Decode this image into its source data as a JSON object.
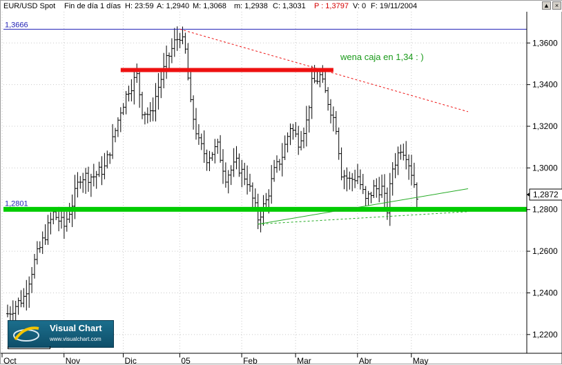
{
  "title_bar": {
    "symbol": "EUR/USD Spot",
    "frame": "Fin de día 1 días",
    "hour": "H: 23:59",
    "a": "A: 1,2940",
    "m": "M: 1,3068",
    "min": "m: 1,2938",
    "c": "C: 1,3031",
    "p": "P : 1,3797",
    "v": "V: 0",
    "f": "F: 19/11/2004"
  },
  "window_buttons": [
    "▲",
    "×"
  ],
  "logo": {
    "title": "Visual Chart",
    "url": "www.visualchart.com"
  },
  "chart_data": {
    "type": "candlestick",
    "title": "EUR/USD Spot",
    "ylim": [
      1.211,
      1.375
    ],
    "y_ticks": [
      "1,2200",
      "1,2400",
      "1,2600",
      "1,2800",
      "1,3000",
      "1,3200",
      "1,3400",
      "1,3600"
    ],
    "y_tick_values": [
      1.22,
      1.24,
      1.26,
      1.28,
      1.3,
      1.32,
      1.34,
      1.36
    ],
    "x_labels": [
      "Oct",
      "Nov",
      "Dic",
      "05",
      "Feb",
      "Mar",
      "Abr",
      "May"
    ],
    "x_label_bars": [
      0,
      23,
      45,
      66,
      89,
      109,
      132,
      152
    ],
    "n_bars": 172,
    "price_path": [
      [
        0,
        1.23
      ],
      [
        6,
        1.238
      ],
      [
        10,
        1.255
      ],
      [
        14,
        1.268
      ],
      [
        17,
        1.278
      ],
      [
        21,
        1.272
      ],
      [
        24,
        1.283
      ],
      [
        27,
        1.296
      ],
      [
        32,
        1.296
      ],
      [
        36,
        1.3
      ],
      [
        39,
        1.313
      ],
      [
        42,
        1.328
      ],
      [
        45,
        1.338
      ],
      [
        48,
        1.344
      ],
      [
        50,
        1.328
      ],
      [
        53,
        1.325
      ],
      [
        56,
        1.339
      ],
      [
        59,
        1.351
      ],
      [
        62,
        1.36
      ],
      [
        64,
        1.364
      ],
      [
        66,
        1.356
      ],
      [
        68,
        1.33
      ],
      [
        71,
        1.312
      ],
      [
        74,
        1.305
      ],
      [
        78,
        1.31
      ],
      [
        81,
        1.296
      ],
      [
        85,
        1.302
      ],
      [
        89,
        1.294
      ],
      [
        91,
        1.285
      ],
      [
        93,
        1.276
      ],
      [
        96,
        1.284
      ],
      [
        99,
        1.298
      ],
      [
        102,
        1.306
      ],
      [
        105,
        1.32
      ],
      [
        108,
        1.313
      ],
      [
        111,
        1.322
      ],
      [
        113,
        1.34
      ],
      [
        116,
        1.344
      ],
      [
        119,
        1.332
      ],
      [
        122,
        1.32
      ],
      [
        124,
        1.298
      ],
      [
        127,
        1.294
      ],
      [
        130,
        1.296
      ],
      [
        133,
        1.284
      ],
      [
        136,
        1.29
      ],
      [
        139,
        1.29
      ],
      [
        141,
        1.28
      ],
      [
        143,
        1.3
      ],
      [
        146,
        1.31
      ],
      [
        148,
        1.307
      ],
      [
        150,
        1.298
      ],
      [
        152,
        1.2872
      ]
    ],
    "last_price": "1,2872",
    "levels": [
      {
        "label": "1,3666",
        "value": 1.3666,
        "color": "#1f1fb4",
        "width": 1
      },
      {
        "label": "1,2801",
        "value": 1.2801,
        "color": "#00cc00",
        "width": 7
      }
    ],
    "resistance_box": {
      "value": 1.347,
      "from_bar": 42,
      "to_bar": 121,
      "color": "#ee1111"
    },
    "trendlines": [
      {
        "from": [
          64,
          1.3666
        ],
        "to": [
          171,
          1.327
        ],
        "color": "#ee1111",
        "dashed": true
      },
      {
        "from": [
          93,
          1.273
        ],
        "to": [
          171,
          1.29
        ],
        "color": "#22aa22",
        "dashed": false
      },
      {
        "from": [
          93,
          1.273
        ],
        "to": [
          171,
          1.279
        ],
        "color": "#22aa22",
        "dashed": true
      }
    ],
    "annotation": {
      "text": "wena caja en 1,34 : )",
      "color": "#1a9a1a"
    }
  }
}
